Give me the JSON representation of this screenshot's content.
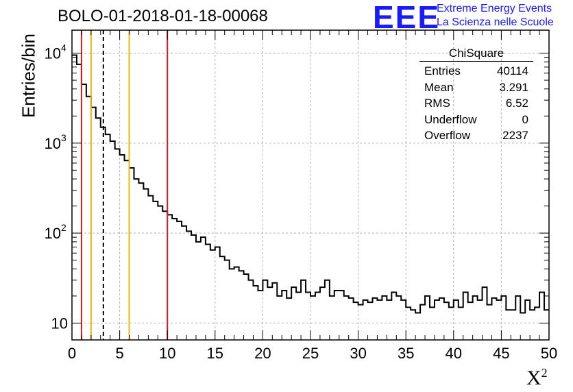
{
  "title": "BOLO-01-2018-01-18-00068",
  "logo": {
    "mark": "EEE",
    "line1": "Extreme Energy Events",
    "line2": "La Scienza nelle Scuole",
    "color": "#1a1aff"
  },
  "stats": {
    "title": "ChiSquare",
    "rows": [
      {
        "label": "Entries",
        "value": "40114"
      },
      {
        "label": "Mean",
        "value": "3.291"
      },
      {
        "label": "RMS",
        "value": "6.52"
      },
      {
        "label": "Underflow",
        "value": "0"
      },
      {
        "label": "Overflow",
        "value": "2237"
      }
    ]
  },
  "chart_data": {
    "type": "histogram",
    "title": "BOLO-01-2018-01-18-00068",
    "xlabel": "X",
    "xlabel_superscript": "2",
    "ylabel": "Entries/bin",
    "xlim": [
      0,
      50
    ],
    "ylim": [
      6.5,
      18000
    ],
    "yscale": "log",
    "bin_width": 0.5,
    "x_ticks": [
      0,
      5,
      10,
      15,
      20,
      25,
      30,
      35,
      40,
      45,
      50
    ],
    "y_ticks": [
      {
        "value": 10,
        "label": "10"
      },
      {
        "value": 100,
        "label": "10",
        "exp": "2"
      },
      {
        "value": 1000,
        "label": "10",
        "exp": "3"
      },
      {
        "value": 10000,
        "label": "10",
        "exp": "4"
      }
    ],
    "grid": true,
    "values": [
      9500,
      7500,
      4500,
      3300,
      2500,
      1900,
      1500,
      1250,
      1050,
      860,
      740,
      640,
      530,
      400,
      360,
      310,
      260,
      225,
      200,
      175,
      160,
      145,
      135,
      120,
      105,
      95,
      80,
      90,
      75,
      65,
      70,
      55,
      50,
      40,
      42,
      38,
      35,
      30,
      26,
      23,
      30,
      25,
      28,
      20,
      23,
      19,
      25,
      22,
      30,
      22,
      20,
      22,
      25,
      30,
      20,
      23,
      23,
      20,
      19,
      17,
      16,
      18,
      17,
      19,
      18,
      20,
      18,
      22,
      20,
      18,
      15,
      14,
      13,
      16,
      20,
      15,
      18,
      19,
      17,
      15,
      18,
      15,
      22,
      17,
      20,
      18,
      25,
      16,
      19,
      18,
      20,
      14,
      14,
      20,
      13,
      18,
      14,
      15,
      22,
      14
    ],
    "vertical_lines": [
      {
        "x": 1.0,
        "color": "#e01a1a",
        "style": "solid"
      },
      {
        "x": 2.0,
        "color": "#f2b705",
        "style": "solid"
      },
      {
        "x": 3.291,
        "color": "#000000",
        "style": "dashed"
      },
      {
        "x": 6.0,
        "color": "#f2b705",
        "style": "solid"
      },
      {
        "x": 10.0,
        "color": "#e01a1a",
        "style": "solid"
      }
    ]
  }
}
